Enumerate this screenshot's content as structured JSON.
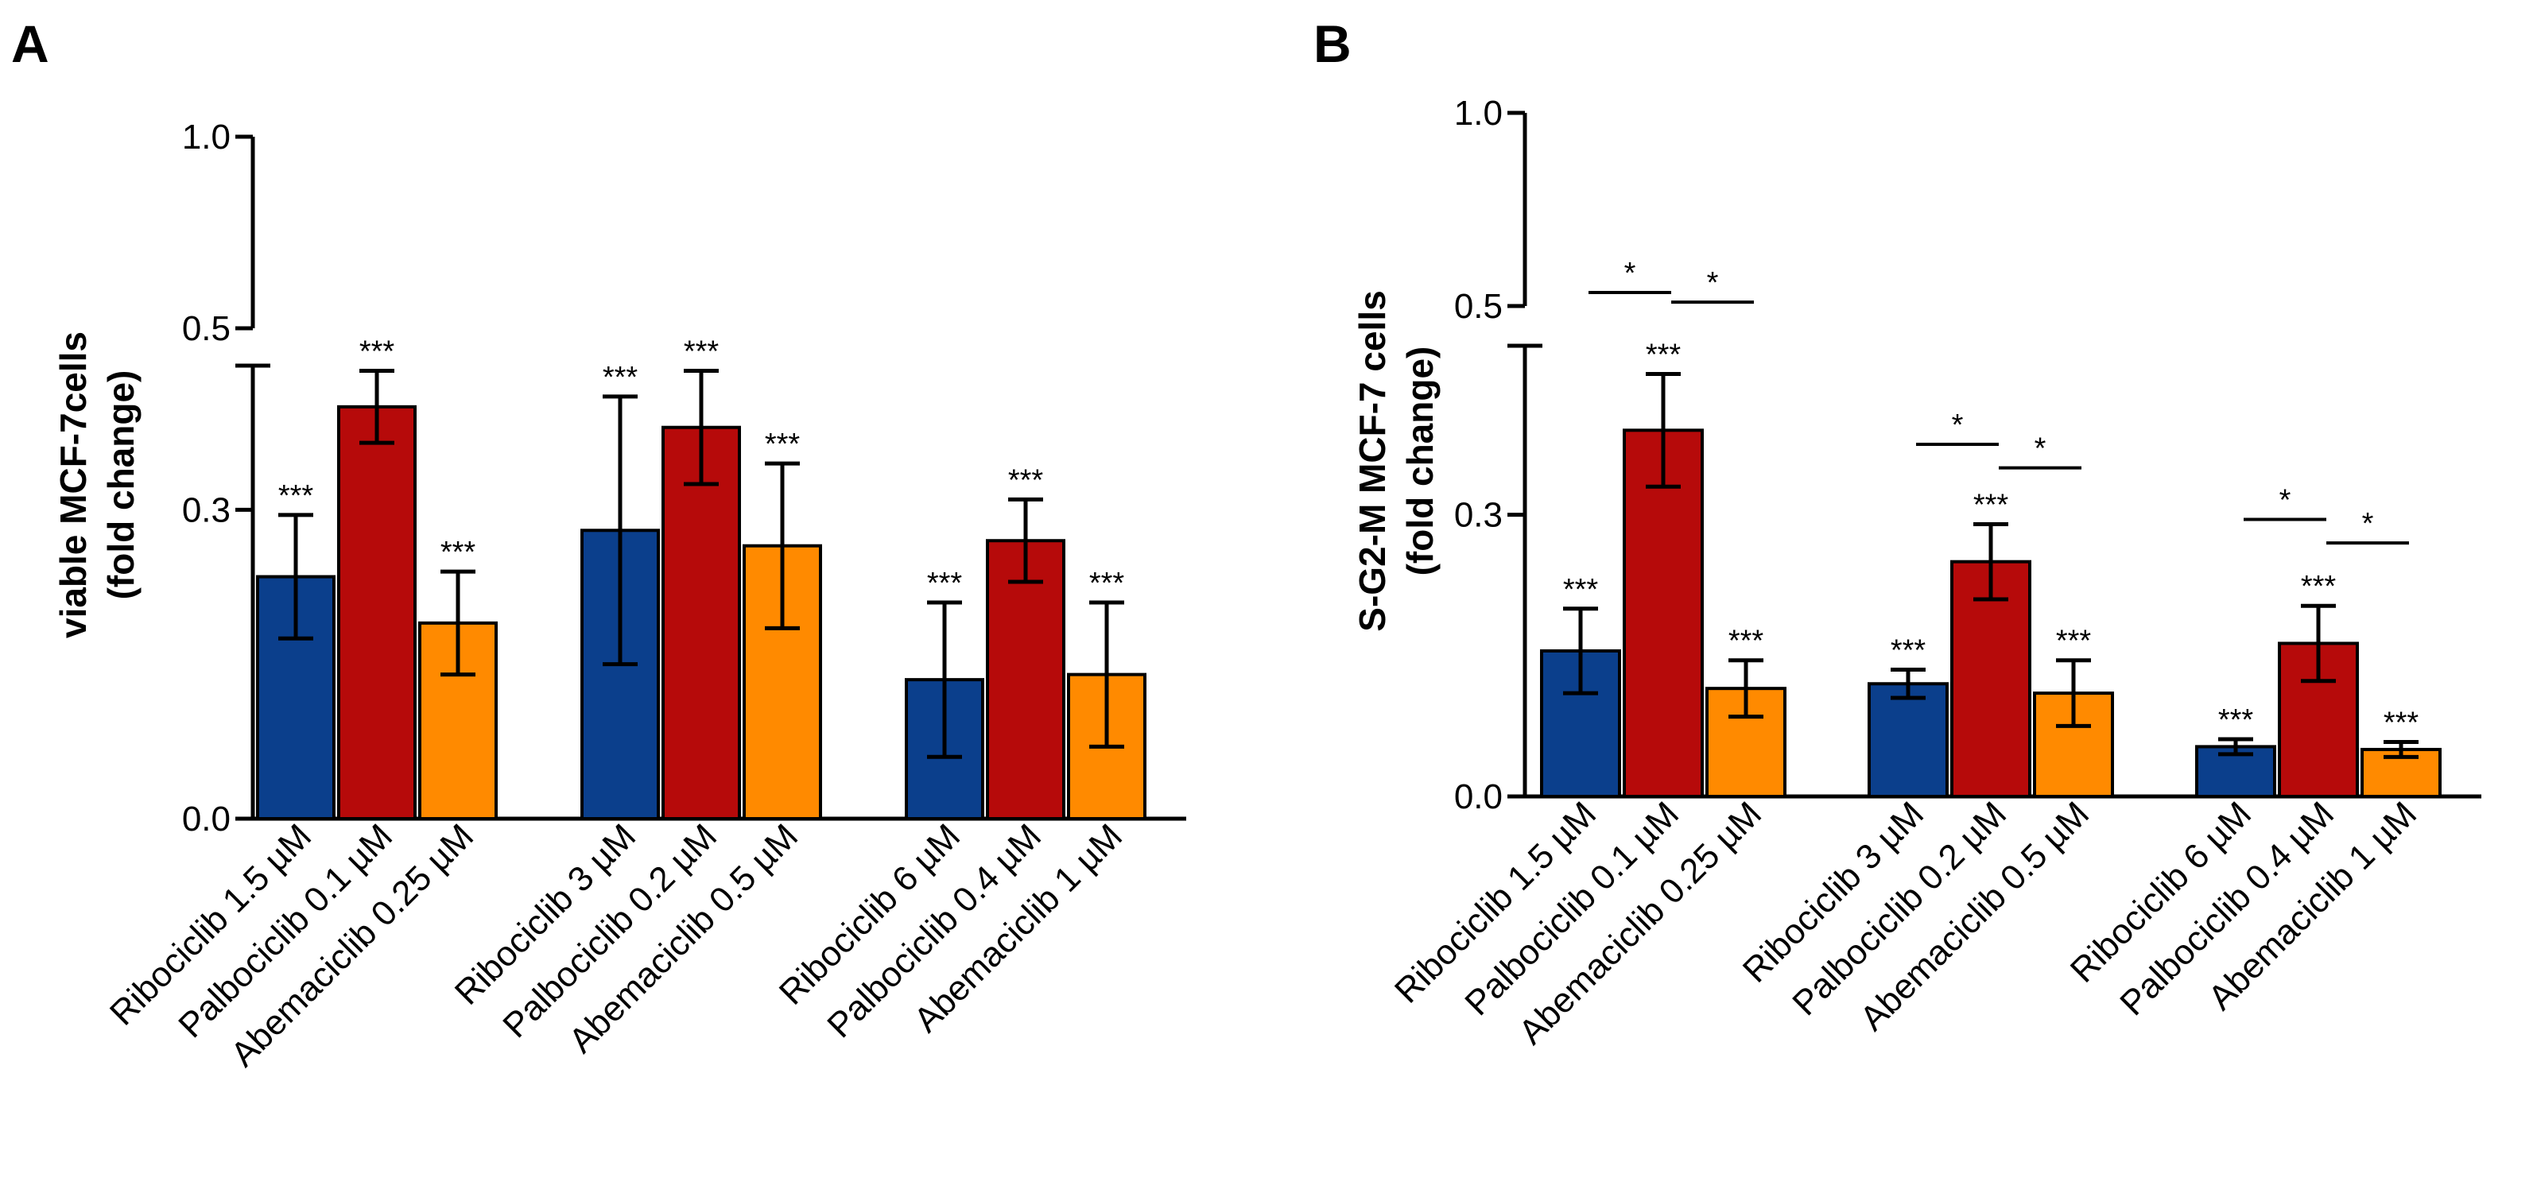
{
  "colors": {
    "Ribociclib": "#0b3f8c",
    "Palbociclib": "#b60a0a",
    "Abemaciclib": "#ff8a00"
  },
  "chart_data": [
    {
      "type": "bar",
      "panel": "A",
      "ylabel_line1": "viable MCF-7cells",
      "ylabel_line2": "(fold change)",
      "ylim": [
        0,
        1.0
      ],
      "axis_break": [
        0.44,
        0.5
      ],
      "yticks": [
        0.0,
        0.3,
        0.5,
        1.0
      ],
      "ytick_labels": [
        "0.0",
        "0.3",
        "0.5",
        "1.0"
      ],
      "categories": [
        "Ribociclib 1.5 µM",
        "Palbociclib 0.1 µM",
        "Abemaciclib 0.25 µM",
        "Ribociclib 3 µM",
        "Palbociclib 0.2 µM",
        "Abemaciclib 0.5 µM",
        "Ribociclib 6 µM",
        "Palbociclib 0.4 µM",
        "Abemaciclib 1 µM"
      ],
      "drugs": [
        "Ribociclib",
        "Palbociclib",
        "Abemaciclib",
        "Ribociclib",
        "Palbociclib",
        "Abemaciclib",
        "Ribociclib",
        "Palbociclib",
        "Abemaciclib"
      ],
      "values": [
        0.235,
        0.4,
        0.19,
        0.28,
        0.38,
        0.265,
        0.135,
        0.27,
        0.14
      ],
      "errors": [
        0.06,
        0.035,
        0.05,
        0.13,
        0.055,
        0.08,
        0.075,
        0.04,
        0.07
      ],
      "significance": [
        "***",
        "***",
        "***",
        "***",
        "***",
        "***",
        "***",
        "***",
        "***"
      ],
      "brackets": []
    },
    {
      "type": "bar",
      "panel": "B",
      "ylabel_line1": "S-G2-M MCF-7 cells",
      "ylabel_line2": "(fold change)",
      "ylim": [
        0,
        1.0
      ],
      "axis_break": [
        0.48,
        0.5
      ],
      "yticks": [
        0.0,
        0.3,
        0.5,
        1.0
      ],
      "ytick_labels": [
        "0.0",
        "0.3",
        "0.5",
        "1.0"
      ],
      "categories": [
        "Ribociclib 1.5 µM",
        "Palbociclib 0.1 µM",
        "Abemaciclib 0.25 µM",
        "Ribociclib 3 µM",
        "Palbociclib 0.2 µM",
        "Abemaciclib 0.5 µM",
        "Ribociclib 6 µM",
        "Palbociclib 0.4 µM",
        "Abemaciclib 1 µM"
      ],
      "drugs": [
        "Ribociclib",
        "Palbociclib",
        "Abemaciclib",
        "Ribociclib",
        "Palbociclib",
        "Abemaciclib",
        "Ribociclib",
        "Palbociclib",
        "Abemaciclib"
      ],
      "values": [
        0.155,
        0.39,
        0.115,
        0.12,
        0.25,
        0.11,
        0.053,
        0.163,
        0.05
      ],
      "errors": [
        0.045,
        0.06,
        0.03,
        0.015,
        0.04,
        0.035,
        0.008,
        0.04,
        0.008
      ],
      "significance": [
        "***",
        "***",
        "***",
        "***",
        "***",
        "***",
        "***",
        "***",
        "***"
      ],
      "brackets": [
        {
          "from": 0,
          "to": 1,
          "y": 0.535,
          "label": "*"
        },
        {
          "from": 1,
          "to": 2,
          "y": 0.51,
          "label": "*"
        },
        {
          "from": 3,
          "to": 4,
          "y": 0.375,
          "label": "*"
        },
        {
          "from": 4,
          "to": 5,
          "y": 0.35,
          "label": "*"
        },
        {
          "from": 6,
          "to": 7,
          "y": 0.295,
          "label": "*"
        },
        {
          "from": 7,
          "to": 8,
          "y": 0.27,
          "label": "*"
        }
      ]
    }
  ]
}
